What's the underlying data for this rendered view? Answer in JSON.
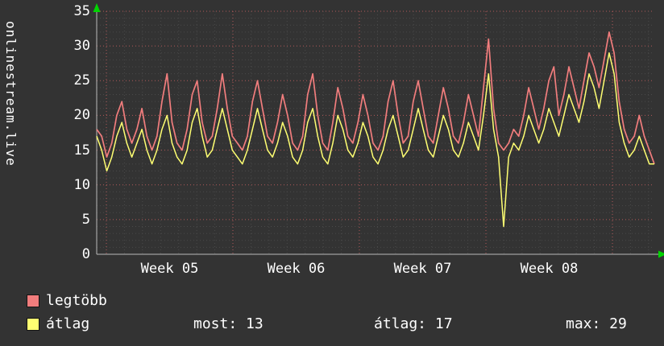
{
  "page": {
    "bg": "#333333",
    "fg": "#ffffff"
  },
  "vertical_title": "onlinestream.live",
  "chart_data": {
    "type": "line",
    "title": "",
    "xlabel": "",
    "ylabel": "",
    "ylim": [
      0,
      35
    ],
    "yticks": [
      0,
      5,
      10,
      15,
      20,
      25,
      30,
      35
    ],
    "x_tick_labels": [
      "Week 05",
      "Week 06",
      "Week 07",
      "Week 08"
    ],
    "x_range_note": "approx. daily samples, 4 points per day, spanning Week 04 to Week 08",
    "grid": {
      "minor_color": "#4a4a4a",
      "major_color": "#b25a5a",
      "on": true
    },
    "axis_color": "#b9b9b9",
    "axis_arrow_color": "#00d400",
    "legend_position": "bottom-left",
    "series": [
      {
        "name": "legtöbb",
        "color": "#f17d7d",
        "values": [
          18,
          17,
          14,
          16,
          20,
          22,
          18,
          16,
          18,
          21,
          17,
          15,
          17,
          22,
          26,
          19,
          16,
          15,
          18,
          23,
          25,
          19,
          16,
          17,
          21,
          26,
          21,
          17,
          16,
          15,
          17,
          22,
          25,
          21,
          17,
          16,
          19,
          23,
          20,
          16,
          15,
          17,
          23,
          26,
          20,
          16,
          15,
          19,
          24,
          21,
          17,
          16,
          19,
          23,
          20,
          16,
          15,
          17,
          22,
          25,
          20,
          16,
          17,
          22,
          25,
          21,
          17,
          16,
          20,
          24,
          21,
          17,
          16,
          19,
          23,
          20,
          17,
          24,
          31,
          21,
          16,
          15,
          16,
          18,
          17,
          20,
          24,
          21,
          18,
          21,
          25,
          27,
          20,
          23,
          27,
          24,
          21,
          25,
          29,
          27,
          24,
          28,
          32,
          29,
          22,
          18,
          16,
          17,
          20,
          17,
          15,
          13
        ]
      },
      {
        "name": "átlag",
        "color": "#ffff72",
        "values": [
          17,
          15,
          12,
          14,
          17,
          19,
          16,
          14,
          16,
          18,
          15,
          13,
          15,
          18,
          20,
          16,
          14,
          13,
          15,
          19,
          21,
          17,
          14,
          15,
          18,
          21,
          18,
          15,
          14,
          13,
          15,
          18,
          21,
          18,
          15,
          14,
          16,
          19,
          17,
          14,
          13,
          15,
          19,
          21,
          17,
          14,
          13,
          16,
          20,
          18,
          15,
          14,
          16,
          19,
          17,
          14,
          13,
          15,
          18,
          20,
          17,
          14,
          15,
          18,
          21,
          18,
          15,
          14,
          17,
          20,
          18,
          15,
          14,
          16,
          19,
          17,
          15,
          20,
          26,
          18,
          14,
          4,
          14,
          16,
          15,
          17,
          20,
          18,
          16,
          18,
          21,
          19,
          17,
          20,
          23,
          21,
          19,
          22,
          26,
          24,
          21,
          25,
          29,
          26,
          19,
          16,
          14,
          15,
          17,
          15,
          13,
          13
        ]
      }
    ]
  },
  "legend": {
    "items": [
      {
        "label": "legtöbb",
        "color": "#f17d7d"
      },
      {
        "label": "átlag",
        "color": "#ffff72"
      }
    ]
  },
  "stats": [
    {
      "text": "most: 13"
    },
    {
      "text": "átlag: 17"
    },
    {
      "text": "max: 29"
    }
  ]
}
